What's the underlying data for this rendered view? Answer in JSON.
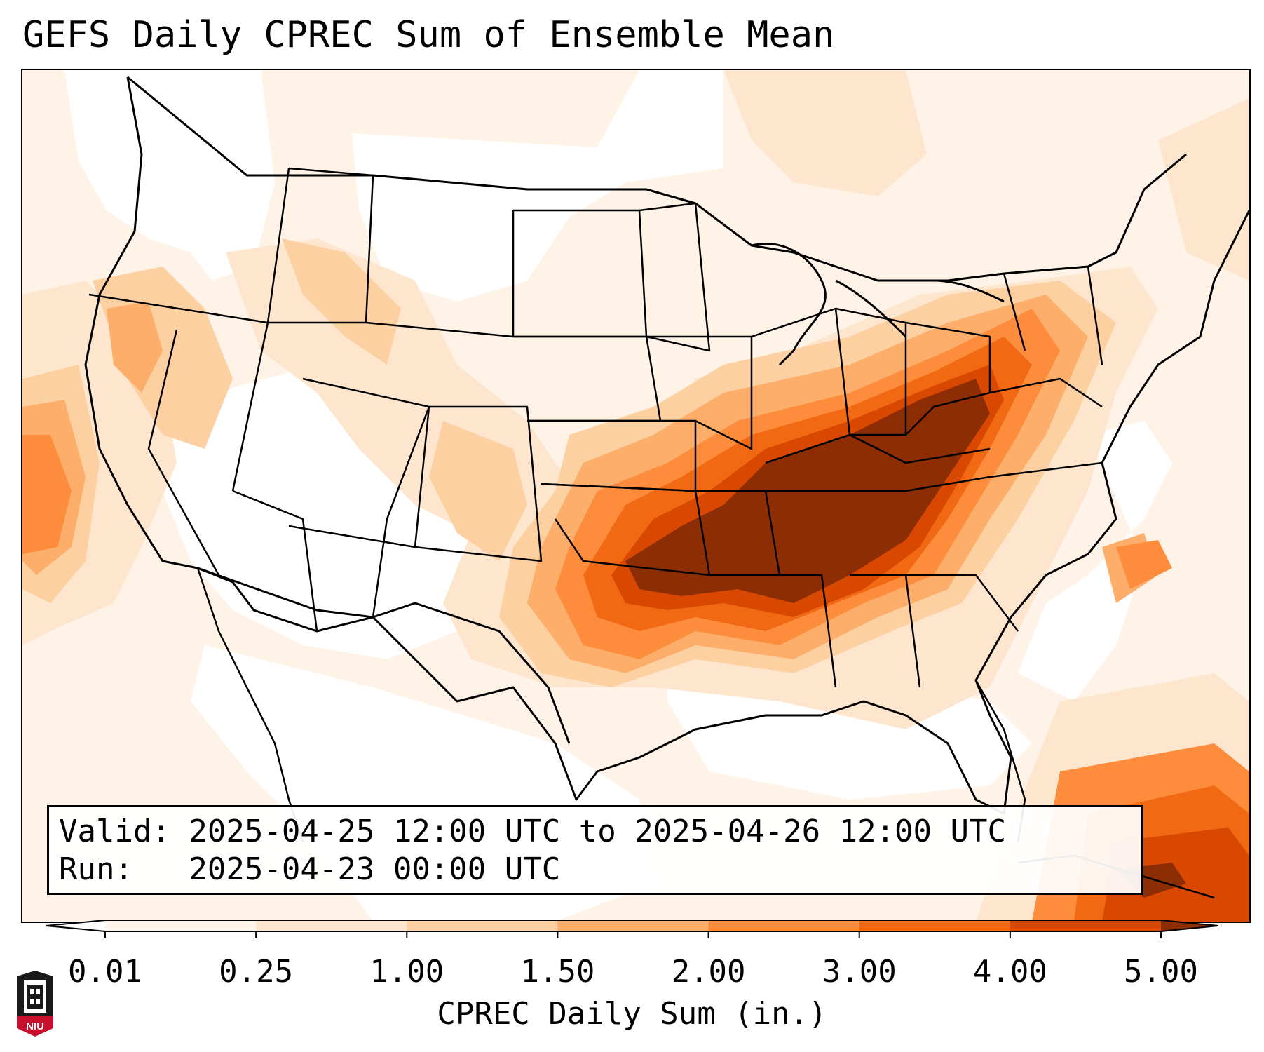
{
  "title": "GEFS Daily CPREC Sum of Ensemble Mean",
  "valid_line": "Valid: 2025-04-25 12:00 UTC to 2025-04-26 12:00 UTC",
  "run_line": "Run:   2025-04-23 00:00 UTC",
  "colorbar": {
    "label": "CPREC Daily Sum (in.)",
    "ticks": [
      "0.01",
      "0.25",
      "1.00",
      "1.50",
      "2.00",
      "3.00",
      "4.00",
      "5.00"
    ],
    "colors": [
      "#fff5eb",
      "#fee6ce",
      "#fdd0a2",
      "#fdae6b",
      "#fd8d3c",
      "#f16913",
      "#d94801",
      "#8c2d04"
    ],
    "extend": "both"
  },
  "logo": {
    "text": "NIU",
    "icon": "niu-clock-tower-icon",
    "color": "#c8102e"
  },
  "colors": {
    "lightest": "#fff5eb",
    "light": "#fee6ce",
    "tan": "#fdd0a2",
    "peach": "#fdae6b",
    "orange": "#fd8d3c",
    "dark_orange": "#f16913",
    "rust": "#d94801",
    "brown": "#8c2d04"
  }
}
